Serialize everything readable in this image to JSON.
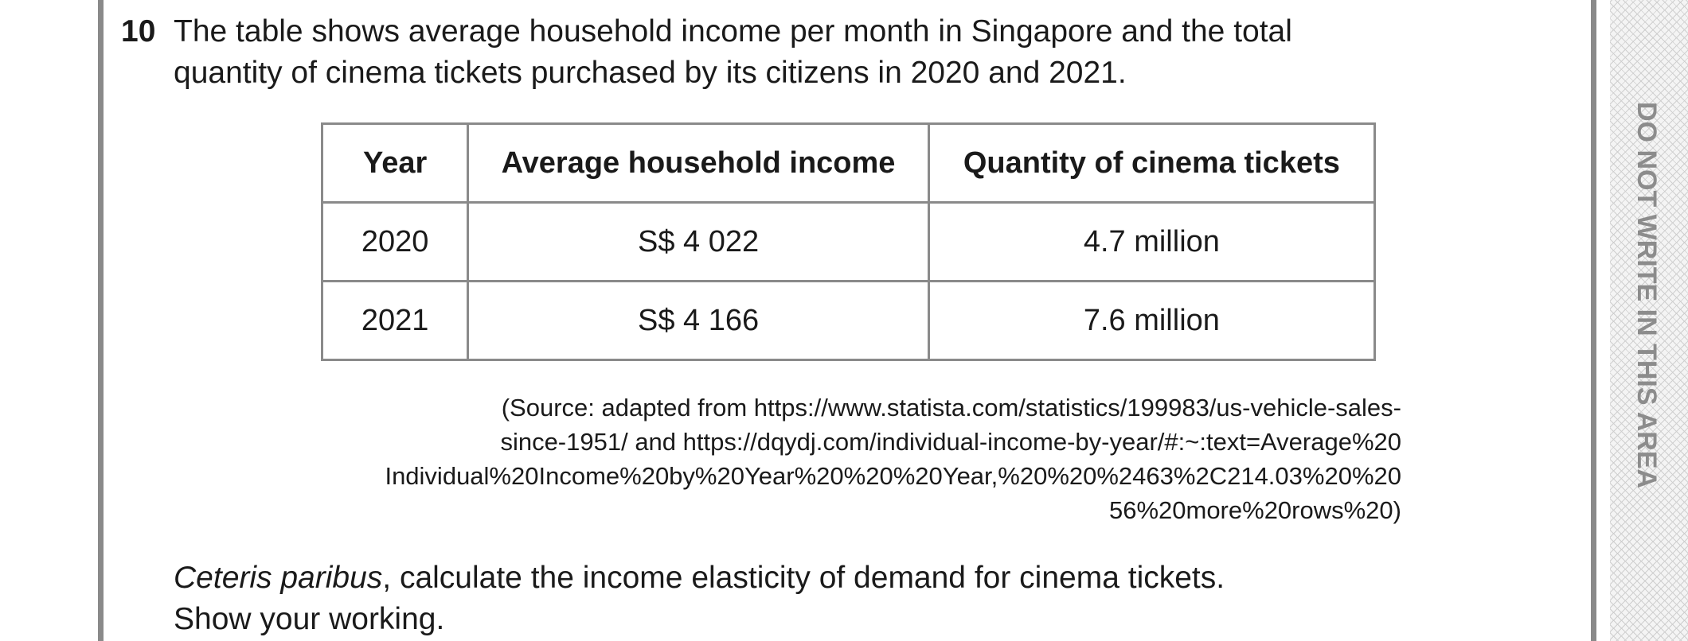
{
  "question": {
    "number": "10",
    "text_line1": "The table shows average household income per month in Singapore and the total",
    "text_line2": "quantity of cinema tickets purchased by its citizens in 2020 and 2021."
  },
  "table": {
    "headers": [
      "Year",
      "Average household income",
      "Quantity of cinema tickets"
    ],
    "rows": [
      [
        "2020",
        "S$ 4 022",
        "4.7 million"
      ],
      [
        "2021",
        "S$ 4 166",
        "7.6 million"
      ]
    ]
  },
  "source": {
    "lines": [
      "(Source: adapted from https://www.statista.com/statistics/199983/us-vehicle-sales-",
      "since-1951/  and  https://dqydj.com/individual-income-by-year/#:~:text=Average%20",
      "Individual%20Income%20by%20Year%20%20%20Year,%20%20%2463%2C214.03%20%20",
      "56%20more%20rows%20)"
    ]
  },
  "instruction": {
    "italic_part": "Ceteris paribus",
    "line1_rest": ", calculate the income elasticity of demand for cinema tickets.",
    "line2": "Show your working."
  },
  "margin_note": "DO NOT WRITE IN THIS AREA"
}
